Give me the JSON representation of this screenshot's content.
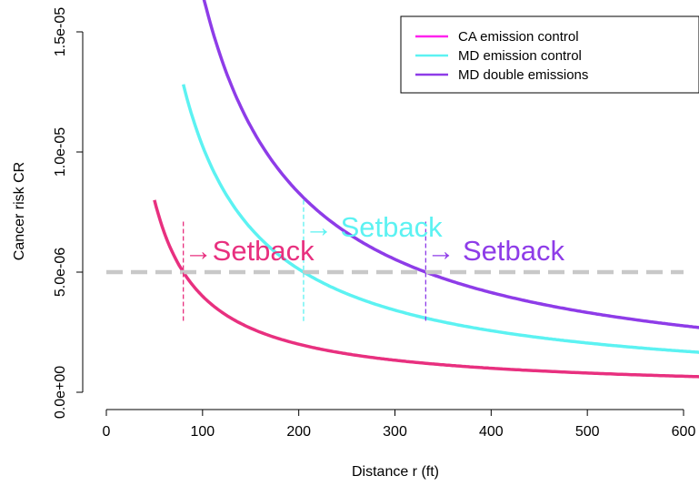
{
  "chart_data": {
    "type": "line",
    "xlabel": "Distance r (ft)",
    "ylabel": "Cancer risk CR",
    "xlim": [
      0,
      610
    ],
    "ylim": [
      0,
      1.5e-05
    ],
    "x_ticks": [
      0,
      100,
      200,
      300,
      400,
      500,
      600
    ],
    "x_tick_labels": [
      "0",
      "100",
      "200",
      "300",
      "400",
      "500",
      "600"
    ],
    "y_ticks": [
      0,
      5e-06,
      1e-05,
      1.5e-05
    ],
    "y_tick_labels": [
      "0.0e+00",
      "5.0e-06",
      "1.0e-05",
      "1.5e-05"
    ],
    "grid": false,
    "legend_position": "top-right",
    "threshold": {
      "y": 5e-06,
      "color": "#c8c8c8",
      "style": "dashed"
    },
    "series": [
      {
        "name": "CA emission control",
        "color": "#e8307f",
        "legend_color": "#ff22ee",
        "k": 0.0004,
        "x_start": 50,
        "x_end": 620,
        "setback_x": 80
      },
      {
        "name": "MD emission control",
        "color": "#5cf2f2",
        "legend_color": "#5cf2f2",
        "k": 0.001025,
        "x_start": 80,
        "x_end": 620,
        "setback_x": 205
      },
      {
        "name": "MD double emissions",
        "color": "#8e3ce8",
        "legend_color": "#8e3ce8",
        "k": 0.00166,
        "x_start": 80,
        "x_end": 620,
        "setback_x": 332
      }
    ],
    "annotations": [
      {
        "text": "→Setback",
        "x": 80,
        "y": 5.9e-06,
        "color": "#e8307f"
      },
      {
        "text": "→ Setback",
        "x": 205,
        "y": 6.9e-06,
        "color": "#5cf2f2"
      },
      {
        "text": "→ Setback",
        "x": 332,
        "y": 5.9e-06,
        "color": "#8e3ce8"
      }
    ]
  }
}
